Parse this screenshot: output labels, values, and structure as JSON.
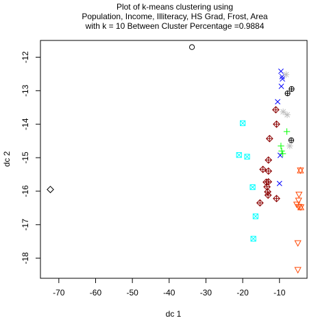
{
  "chart_data": {
    "type": "scatter",
    "title_lines": [
      "Plot of k-means clustering using",
      "Population, Income, Illiteracy, HS Grad, Frost, Area",
      "with  k = 10 Between Cluster Percentage =0.9884"
    ],
    "xlabel": "dc 1",
    "ylabel": "dc 2",
    "xlim": [
      -75,
      -2.5
    ],
    "ylim": [
      -18.6,
      -11.5
    ],
    "xticks": [
      -70,
      -60,
      -50,
      -40,
      -30,
      -20,
      -10
    ],
    "yticks": [
      -12,
      -13,
      -14,
      -15,
      -16,
      -17,
      -18
    ],
    "grid": false,
    "clusters": [
      {
        "symbol": "circle",
        "color": "#000000",
        "points": [
          [
            -33.8,
            -11.7
          ]
        ]
      },
      {
        "symbol": "diamond",
        "color": "#000000",
        "points": [
          [
            -72.3,
            -15.95
          ]
        ]
      },
      {
        "symbol": "cross",
        "color": "#0000ff",
        "points": [
          [
            -9.6,
            -12.42
          ],
          [
            -9.3,
            -12.58
          ],
          [
            -9.2,
            -12.65
          ],
          [
            -9.5,
            -12.87
          ],
          [
            -10.5,
            -13.33
          ],
          [
            -9.8,
            -14.93
          ],
          [
            -10.0,
            -15.77
          ]
        ]
      },
      {
        "symbol": "circle-plus",
        "color": "#000000",
        "points": [
          [
            -6.7,
            -12.95
          ],
          [
            -7.8,
            -13.08
          ],
          [
            -6.8,
            -14.48
          ]
        ]
      },
      {
        "symbol": "asterisk",
        "color": "#bebebe",
        "points": [
          [
            -8.2,
            -12.52
          ],
          [
            -9.0,
            -13.63
          ],
          [
            -7.9,
            -13.72
          ],
          [
            -7.2,
            -14.65
          ]
        ]
      },
      {
        "symbol": "diamond-plus",
        "color": "#8b0000",
        "points": [
          [
            -11.0,
            -13.57
          ],
          [
            -10.8,
            -14.0
          ],
          [
            -12.7,
            -14.43
          ],
          [
            -13.0,
            -15.07
          ],
          [
            -13.0,
            -15.4
          ],
          [
            -14.5,
            -15.35
          ],
          [
            -13.6,
            -15.73
          ],
          [
            -13.0,
            -15.72
          ],
          [
            -13.4,
            -15.87
          ],
          [
            -13.2,
            -16.02
          ],
          [
            -13.1,
            -16.12
          ],
          [
            -10.8,
            -16.22
          ],
          [
            -15.3,
            -16.35
          ]
        ]
      },
      {
        "symbol": "plus",
        "color": "#00ff00",
        "points": [
          [
            -8.0,
            -14.22
          ],
          [
            -9.6,
            -14.65
          ],
          [
            -9.4,
            -14.8
          ],
          [
            -9.1,
            -14.88
          ]
        ]
      },
      {
        "symbol": "square-cross",
        "color": "#00ffff",
        "points": [
          [
            -20.0,
            -13.97
          ],
          [
            -21.0,
            -14.92
          ],
          [
            -18.8,
            -14.97
          ],
          [
            -17.3,
            -15.88
          ],
          [
            -16.5,
            -16.75
          ],
          [
            -17.1,
            -17.42
          ]
        ]
      },
      {
        "symbol": "triangle-down",
        "color": "#ff4500",
        "points": [
          [
            -4.7,
            -16.1
          ],
          [
            -4.8,
            -16.28
          ],
          [
            -5.3,
            -16.4
          ],
          [
            -4.7,
            -16.47
          ],
          [
            -5.0,
            -17.55
          ],
          [
            -5.0,
            -18.35
          ]
        ]
      },
      {
        "symbol": "hourglass",
        "color": "#ff4500",
        "points": [
          [
            -4.3,
            -15.38
          ],
          [
            -4.2,
            -16.48
          ]
        ]
      }
    ]
  }
}
